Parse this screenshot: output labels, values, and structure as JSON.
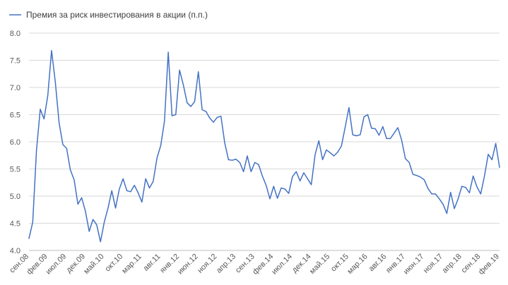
{
  "chart_data": {
    "type": "line",
    "title": "",
    "xlabel": "",
    "ylabel": "",
    "ylim": [
      4.0,
      8.0
    ],
    "y_ticks": [
      "4.0",
      "4.5",
      "5.0",
      "5.5",
      "6.0",
      "6.5",
      "7.0",
      "7.5",
      "8.0"
    ],
    "grid": "horizontal",
    "legend_position": "top-left",
    "x_range": [
      "сен.08",
      "фев.19"
    ],
    "x_tick_labels": [
      {
        "label": "сен.08",
        "month_index": 0
      },
      {
        "label": "фев.09",
        "month_index": 5
      },
      {
        "label": "июл.09",
        "month_index": 10
      },
      {
        "label": "дек.09",
        "month_index": 15
      },
      {
        "label": "май.10",
        "month_index": 20
      },
      {
        "label": "окт.10",
        "month_index": 25
      },
      {
        "label": "мар.11",
        "month_index": 30
      },
      {
        "label": "авг.11",
        "month_index": 35
      },
      {
        "label": "янв.12",
        "month_index": 40
      },
      {
        "label": "июн.12",
        "month_index": 45
      },
      {
        "label": "ноя.12",
        "month_index": 50
      },
      {
        "label": "апр.13",
        "month_index": 55
      },
      {
        "label": "сен.13",
        "month_index": 60
      },
      {
        "label": "фев.14",
        "month_index": 65
      },
      {
        "label": "июл.14",
        "month_index": 70
      },
      {
        "label": "дек.14",
        "month_index": 75
      },
      {
        "label": "май.15",
        "month_index": 80
      },
      {
        "label": "окт.15",
        "month_index": 85
      },
      {
        "label": "мар.16",
        "month_index": 90
      },
      {
        "label": "авг.16",
        "month_index": 95
      },
      {
        "label": "янв.17",
        "month_index": 100
      },
      {
        "label": "июн.17",
        "month_index": 105
      },
      {
        "label": "ноя.17",
        "month_index": 110
      },
      {
        "label": "апр.18",
        "month_index": 115
      },
      {
        "label": "сен.18",
        "month_index": 120
      },
      {
        "label": "фев.19",
        "month_index": 125
      }
    ],
    "series": [
      {
        "name": "Премия за риск инвестирования в акции (п.п.)",
        "color": "#4472C4",
        "values": [
          4.22,
          4.52,
          5.85,
          6.6,
          6.42,
          6.85,
          7.68,
          7.1,
          6.35,
          5.95,
          5.88,
          5.48,
          5.3,
          4.85,
          4.97,
          4.72,
          4.35,
          4.57,
          4.47,
          4.16,
          4.52,
          4.78,
          5.1,
          4.78,
          5.13,
          5.32,
          5.1,
          5.08,
          5.2,
          5.06,
          4.89,
          5.32,
          5.15,
          5.27,
          5.7,
          5.93,
          6.38,
          7.65,
          6.48,
          6.5,
          7.32,
          7.05,
          6.72,
          6.65,
          6.74,
          7.29,
          6.59,
          6.56,
          6.44,
          6.36,
          6.45,
          6.47,
          5.98,
          5.67,
          5.66,
          5.68,
          5.62,
          5.45,
          5.74,
          5.45,
          5.62,
          5.58,
          5.37,
          5.2,
          4.95,
          5.18,
          4.96,
          5.15,
          5.13,
          5.05,
          5.36,
          5.45,
          5.28,
          5.43,
          5.32,
          5.21,
          5.76,
          6.02,
          5.67,
          5.85,
          5.8,
          5.74,
          5.81,
          5.92,
          6.27,
          6.63,
          6.13,
          6.11,
          6.13,
          6.46,
          6.5,
          6.25,
          6.24,
          6.12,
          6.28,
          6.06,
          6.06,
          6.16,
          6.26,
          6.03,
          5.69,
          5.62,
          5.4,
          5.38,
          5.35,
          5.3,
          5.14,
          5.04,
          5.04,
          4.95,
          4.85,
          4.68,
          5.07,
          4.77,
          4.95,
          5.18,
          5.16,
          5.06,
          5.37,
          5.17,
          5.04,
          5.37,
          5.77,
          5.67,
          5.97,
          5.53
        ]
      }
    ]
  }
}
